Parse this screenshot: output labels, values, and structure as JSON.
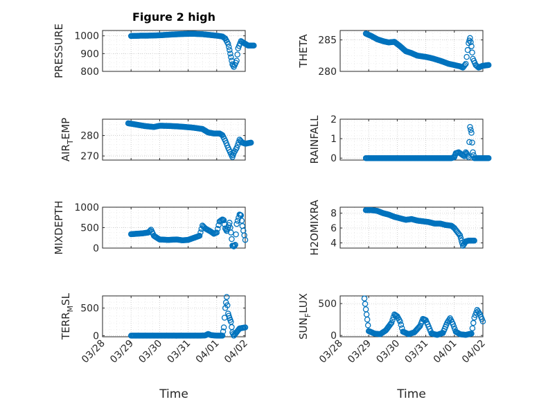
{
  "figure": {
    "title": "Figure 2 high",
    "xlabel_left": "Time",
    "xlabel_right": "Time",
    "date_ticks": [
      "03/28",
      "03/29",
      "03/30",
      "03/31",
      "04/01",
      "04/02"
    ],
    "marker_color": "#0072BD"
  },
  "chart_data": [
    {
      "id": "pressure",
      "type": "scatter",
      "ylabel": "PRESSURE",
      "ylim": [
        800,
        1030
      ],
      "yticks": [
        800,
        900,
        1000
      ],
      "xlim": [
        "03/28",
        "04/02"
      ],
      "grid": true,
      "points": [
        [
          1.0,
          999
        ],
        [
          1.2,
          1000
        ],
        [
          1.4,
          1001
        ],
        [
          1.6,
          1001
        ],
        [
          1.8,
          1002
        ],
        [
          2.0,
          1003
        ],
        [
          2.2,
          1005
        ],
        [
          2.5,
          1008
        ],
        [
          2.8,
          1010
        ],
        [
          3.0,
          1011
        ],
        [
          3.2,
          1011
        ],
        [
          3.5,
          1009
        ],
        [
          3.8,
          1004
        ],
        [
          4.0,
          1001
        ],
        [
          4.2,
          996
        ],
        [
          4.3,
          985
        ],
        [
          4.4,
          955
        ],
        [
          4.45,
          920
        ],
        [
          4.5,
          880
        ],
        [
          4.55,
          840
        ],
        [
          4.6,
          825
        ],
        [
          4.7,
          860
        ],
        [
          4.75,
          930
        ],
        [
          4.85,
          970
        ],
        [
          4.95,
          960
        ],
        [
          5.1,
          945
        ],
        [
          5.3,
          945
        ]
      ]
    },
    {
      "id": "theta",
      "type": "scatter",
      "ylabel": "THETA",
      "ylim": [
        280,
        286.5
      ],
      "yticks": [
        280,
        285
      ],
      "xlim": [
        "03/28",
        "04/02"
      ],
      "grid": true,
      "points": [
        [
          0.9,
          286
        ],
        [
          1.1,
          285.6
        ],
        [
          1.3,
          285.1
        ],
        [
          1.5,
          284.8
        ],
        [
          1.7,
          284.6
        ],
        [
          1.9,
          284.7
        ],
        [
          2.1,
          284.0
        ],
        [
          2.3,
          283.2
        ],
        [
          2.5,
          282.9
        ],
        [
          2.7,
          282.5
        ],
        [
          3.0,
          282.3
        ],
        [
          3.2,
          282.1
        ],
        [
          3.5,
          281.7
        ],
        [
          3.8,
          281.2
        ],
        [
          4.0,
          281.0
        ],
        [
          4.2,
          280.8
        ],
        [
          4.3,
          280.6
        ],
        [
          4.4,
          281.2
        ],
        [
          4.5,
          284.5
        ],
        [
          4.55,
          285.3
        ],
        [
          4.6,
          284.0
        ],
        [
          4.65,
          282.0
        ],
        [
          4.75,
          281.0
        ],
        [
          4.85,
          280.6
        ],
        [
          5.0,
          280.9
        ],
        [
          5.2,
          281.0
        ]
      ]
    },
    {
      "id": "airtemp",
      "type": "scatter",
      "ylabel_main": "AIR",
      "ylabel_sub": "T",
      "ylabel_rest": "EMP",
      "ylim": [
        268,
        288
      ],
      "yticks": [
        270,
        280
      ],
      "xlim": [
        "03/28",
        "04/02"
      ],
      "grid": true,
      "points": [
        [
          0.9,
          286
        ],
        [
          1.2,
          285.3
        ],
        [
          1.5,
          284.6
        ],
        [
          1.8,
          284.2
        ],
        [
          2.0,
          284.8
        ],
        [
          2.3,
          284.7
        ],
        [
          2.6,
          284.5
        ],
        [
          2.9,
          284.2
        ],
        [
          3.2,
          283.8
        ],
        [
          3.5,
          283.2
        ],
        [
          3.7,
          281.5
        ],
        [
          3.9,
          281.0
        ],
        [
          4.1,
          281.0
        ],
        [
          4.2,
          280.2
        ],
        [
          4.3,
          277.5
        ],
        [
          4.4,
          274.0
        ],
        [
          4.5,
          271.0
        ],
        [
          4.55,
          269.5
        ],
        [
          4.6,
          271.5
        ],
        [
          4.7,
          274.0
        ],
        [
          4.8,
          278.0
        ],
        [
          4.9,
          276.5
        ],
        [
          5.0,
          276.0
        ],
        [
          5.2,
          276.5
        ]
      ]
    },
    {
      "id": "rainfall",
      "type": "scatter",
      "ylabel": "RAINFALL",
      "ylim": [
        -0.1,
        2.0
      ],
      "yticks": [
        0,
        1,
        2
      ],
      "xlim": [
        "03/28",
        "04/02"
      ],
      "grid": true,
      "points": [
        [
          0.9,
          0
        ],
        [
          1.2,
          0
        ],
        [
          1.5,
          0
        ],
        [
          1.8,
          0
        ],
        [
          2.1,
          0
        ],
        [
          2.4,
          0
        ],
        [
          2.7,
          0
        ],
        [
          3.0,
          0
        ],
        [
          3.3,
          0
        ],
        [
          3.6,
          0
        ],
        [
          3.9,
          0
        ],
        [
          4.0,
          0.05
        ],
        [
          4.05,
          0.25
        ],
        [
          4.15,
          0.3
        ],
        [
          4.25,
          0.2
        ],
        [
          4.35,
          0.1
        ],
        [
          4.4,
          0.3
        ],
        [
          4.45,
          0.2
        ],
        [
          4.5,
          0.05
        ],
        [
          4.55,
          1.6
        ],
        [
          4.6,
          1.3
        ],
        [
          4.65,
          0.3
        ],
        [
          4.7,
          0
        ],
        [
          4.8,
          0
        ],
        [
          5.0,
          0
        ],
        [
          5.2,
          0
        ]
      ]
    },
    {
      "id": "mixdepth",
      "type": "scatter",
      "ylabel": "MIXDEPTH",
      "ylim": [
        0,
        1000
      ],
      "yticks": [
        0,
        500,
        1000
      ],
      "xlim": [
        "03/28",
        "04/02"
      ],
      "grid": true,
      "points": [
        [
          1.0,
          340
        ],
        [
          1.2,
          350
        ],
        [
          1.4,
          360
        ],
        [
          1.6,
          380
        ],
        [
          1.7,
          450
        ],
        [
          1.8,
          300
        ],
        [
          2.0,
          210
        ],
        [
          2.3,
          200
        ],
        [
          2.6,
          210
        ],
        [
          2.8,
          190
        ],
        [
          3.0,
          200
        ],
        [
          3.2,
          250
        ],
        [
          3.4,
          300
        ],
        [
          3.5,
          550
        ],
        [
          3.6,
          480
        ],
        [
          3.8,
          400
        ],
        [
          3.9,
          350
        ],
        [
          4.0,
          380
        ],
        [
          4.1,
          650
        ],
        [
          4.2,
          700
        ],
        [
          4.25,
          680
        ],
        [
          4.3,
          480
        ],
        [
          4.35,
          420
        ],
        [
          4.4,
          500
        ],
        [
          4.45,
          620
        ],
        [
          4.5,
          380
        ],
        [
          4.55,
          60
        ],
        [
          4.6,
          40
        ],
        [
          4.65,
          80
        ],
        [
          4.7,
          590
        ],
        [
          4.8,
          820
        ],
        [
          4.85,
          800
        ],
        [
          4.9,
          540
        ],
        [
          5.0,
          200
        ]
      ]
    },
    {
      "id": "h2omixra",
      "type": "scatter",
      "ylabel": "H2OMIXRA",
      "ylim": [
        3.3,
        8.8
      ],
      "yticks": [
        4,
        6,
        8
      ],
      "xlim": [
        "03/28",
        "04/02"
      ],
      "grid": true,
      "points": [
        [
          0.9,
          8.4
        ],
        [
          1.1,
          8.4
        ],
        [
          1.3,
          8.3
        ],
        [
          1.5,
          8.0
        ],
        [
          1.7,
          7.8
        ],
        [
          1.9,
          7.5
        ],
        [
          2.1,
          7.3
        ],
        [
          2.3,
          7.1
        ],
        [
          2.5,
          7.2
        ],
        [
          2.7,
          7.0
        ],
        [
          2.9,
          6.9
        ],
        [
          3.1,
          6.8
        ],
        [
          3.3,
          6.6
        ],
        [
          3.5,
          6.6
        ],
        [
          3.7,
          6.4
        ],
        [
          3.9,
          6.3
        ],
        [
          4.0,
          6.0
        ],
        [
          4.1,
          5.5
        ],
        [
          4.2,
          5.0
        ],
        [
          4.25,
          4.3
        ],
        [
          4.3,
          3.6
        ],
        [
          4.35,
          3.9
        ],
        [
          4.4,
          4.2
        ],
        [
          4.5,
          4.3
        ],
        [
          4.7,
          4.3
        ]
      ]
    },
    {
      "id": "terrmsl",
      "type": "scatter",
      "ylabel_main": "TERR",
      "ylabel_sub": "M",
      "ylabel_rest": "SL",
      "ylim": [
        -20,
        720
      ],
      "yticks": [
        0,
        500
      ],
      "xlim": [
        "03/28",
        "04/02"
      ],
      "grid": true,
      "points": [
        [
          1.0,
          0
        ],
        [
          1.3,
          0
        ],
        [
          1.6,
          0
        ],
        [
          1.9,
          0
        ],
        [
          2.2,
          0
        ],
        [
          2.5,
          0
        ],
        [
          2.8,
          0
        ],
        [
          3.1,
          0
        ],
        [
          3.4,
          0
        ],
        [
          3.6,
          5
        ],
        [
          3.7,
          30
        ],
        [
          3.8,
          10
        ],
        [
          4.0,
          0
        ],
        [
          4.2,
          0
        ],
        [
          4.25,
          150
        ],
        [
          4.3,
          500
        ],
        [
          4.35,
          700
        ],
        [
          4.4,
          400
        ],
        [
          4.45,
          320
        ],
        [
          4.5,
          250
        ],
        [
          4.55,
          60
        ],
        [
          4.6,
          0
        ],
        [
          4.8,
          130
        ],
        [
          4.9,
          140
        ],
        [
          5.0,
          150
        ]
      ]
    },
    {
      "id": "sunflux",
      "type": "scatter",
      "ylabel_main": "SUN",
      "ylabel_sub": "F",
      "ylabel_rest": "LUX",
      "ylim": [
        -20,
        620
      ],
      "yticks": [
        0,
        500
      ],
      "xlim": [
        "03/28",
        "04/02"
      ],
      "grid": true,
      "points": [
        [
          0.85,
          580
        ],
        [
          0.9,
          410
        ],
        [
          0.95,
          250
        ],
        [
          1.0,
          70
        ],
        [
          1.2,
          30
        ],
        [
          1.4,
          20
        ],
        [
          1.6,
          80
        ],
        [
          1.8,
          200
        ],
        [
          1.9,
          330
        ],
        [
          2.0,
          300
        ],
        [
          2.1,
          220
        ],
        [
          2.2,
          60
        ],
        [
          2.4,
          20
        ],
        [
          2.6,
          50
        ],
        [
          2.8,
          150
        ],
        [
          2.9,
          260
        ],
        [
          3.0,
          240
        ],
        [
          3.1,
          140
        ],
        [
          3.2,
          30
        ],
        [
          3.4,
          10
        ],
        [
          3.6,
          40
        ],
        [
          3.75,
          200
        ],
        [
          3.85,
          270
        ],
        [
          3.95,
          180
        ],
        [
          4.05,
          60
        ],
        [
          4.2,
          20
        ],
        [
          4.4,
          10
        ],
        [
          4.6,
          30
        ],
        [
          4.7,
          280
        ],
        [
          4.8,
          400
        ],
        [
          4.9,
          330
        ],
        [
          5.0,
          220
        ]
      ]
    }
  ]
}
